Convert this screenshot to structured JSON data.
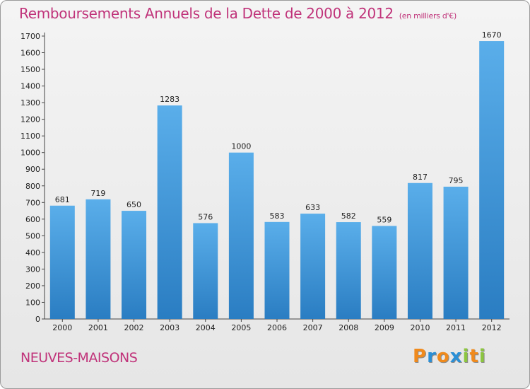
{
  "header": {
    "title": "Remboursements Annuels de la Dette de 2000 à 2012",
    "unit": "(en milliers d'€)"
  },
  "footer": {
    "commune": "NEUVES-MAISONS",
    "logo": [
      "P",
      "r",
      "o",
      "x",
      "i",
      "t",
      "i"
    ]
  },
  "colors": {
    "title": "#c0337a",
    "bar_top": "#5aaeea",
    "bar_bottom": "#2a7dc2",
    "logo": [
      "#f08a1c",
      "#2a8fd6",
      "#f08a1c",
      "#2a8fd6",
      "#8cc63f",
      "#f08a1c",
      "#8cc63f"
    ]
  },
  "chart_data": {
    "type": "bar",
    "categories": [
      "2000",
      "2001",
      "2002",
      "2003",
      "2004",
      "2005",
      "2006",
      "2007",
      "2008",
      "2009",
      "2010",
      "2011",
      "2012"
    ],
    "values": [
      681,
      719,
      650,
      1283,
      576,
      1000,
      583,
      633,
      582,
      559,
      817,
      795,
      1670
    ],
    "ylim": [
      0,
      1700
    ],
    "yticks": [
      0,
      100,
      200,
      300,
      400,
      500,
      600,
      700,
      800,
      900,
      1000,
      1100,
      1200,
      1300,
      1400,
      1500,
      1600,
      1700
    ],
    "grid": false,
    "data_labels": true
  }
}
